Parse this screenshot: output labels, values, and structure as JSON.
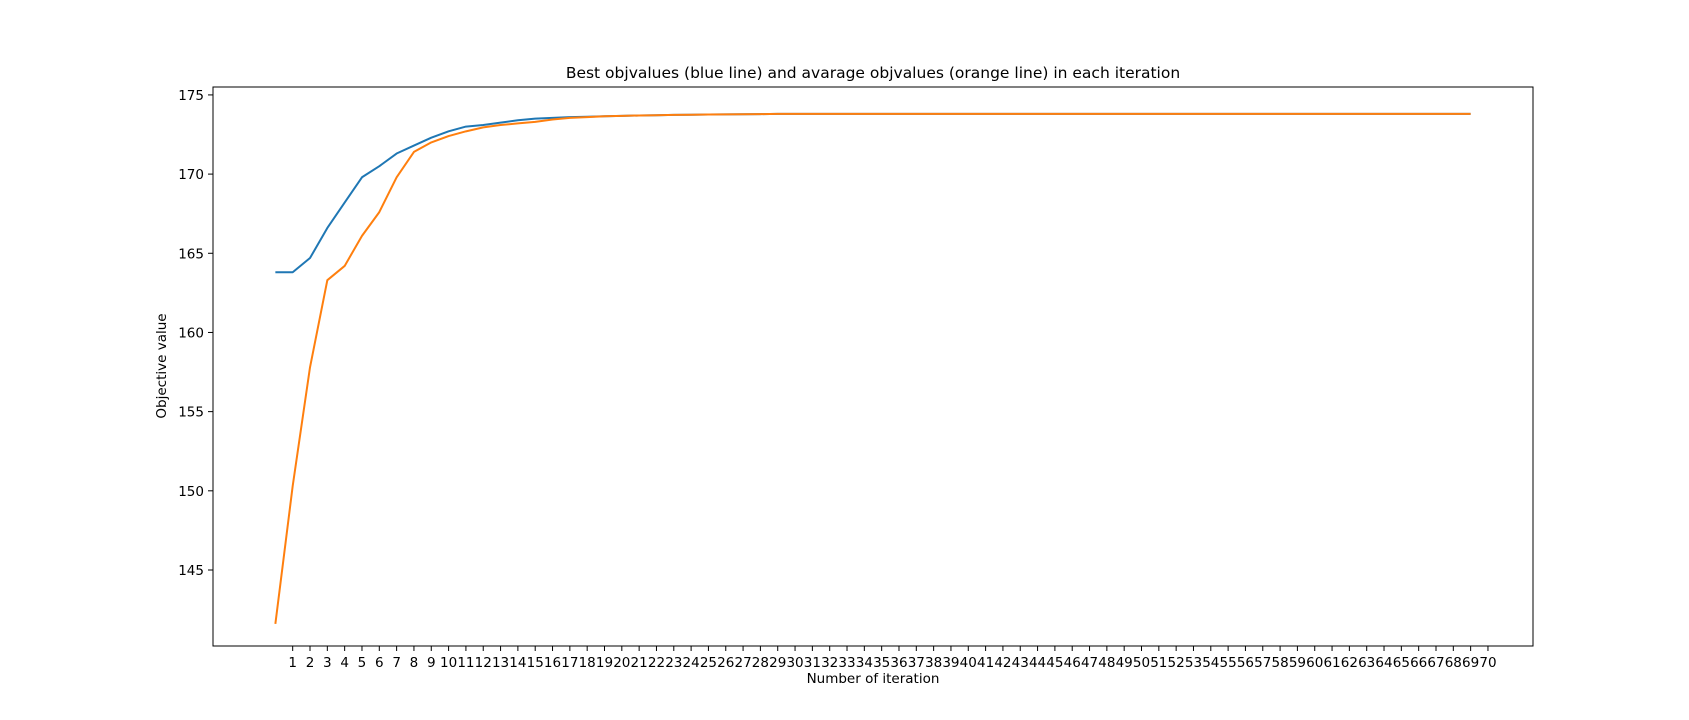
{
  "chart_data": {
    "type": "line",
    "title": "Best objvalues (blue line) and avarage objvalues (orange line) in each iteration",
    "xlabel": "Number of iteration",
    "ylabel": "Objective value",
    "x_start": 0,
    "x_tick_labels": [
      "1",
      "2",
      "3",
      "4",
      "5",
      "6",
      "7",
      "8",
      "9",
      "10",
      "11",
      "12",
      "13",
      "14",
      "15",
      "16",
      "17",
      "18",
      "19",
      "20",
      "21",
      "22",
      "23",
      "24",
      "25",
      "26",
      "27",
      "28",
      "29",
      "30",
      "31",
      "32",
      "33",
      "34",
      "35",
      "36",
      "37",
      "38",
      "39",
      "40",
      "41",
      "42",
      "43",
      "44",
      "45",
      "46",
      "47",
      "48",
      "49",
      "50",
      "51",
      "52",
      "53",
      "54",
      "55",
      "56",
      "57",
      "58",
      "59",
      "60",
      "61",
      "62",
      "63",
      "64",
      "65",
      "66",
      "67",
      "68",
      "69",
      "70"
    ],
    "y_ticks": [
      145,
      150,
      155,
      160,
      165,
      170,
      175
    ],
    "xlim": [
      -3.6,
      72.6
    ],
    "ylim": [
      140.2,
      175.5
    ],
    "grid": false,
    "legend": "none",
    "series": [
      {
        "color": "#1f77b4",
        "values": [
          163.8,
          163.8,
          164.7,
          166.6,
          168.2,
          169.8,
          170.5,
          171.3,
          171.8,
          172.3,
          172.7,
          173.0,
          173.1,
          173.25,
          173.4,
          173.5,
          173.55,
          173.6,
          173.62,
          173.65,
          173.68,
          173.7,
          173.72,
          173.74,
          173.75,
          173.76,
          173.77,
          173.78,
          173.79,
          173.8,
          173.8,
          173.8,
          173.8,
          173.8,
          173.8,
          173.8,
          173.8,
          173.8,
          173.8,
          173.8,
          173.8,
          173.8,
          173.8,
          173.8,
          173.8,
          173.8,
          173.8,
          173.8,
          173.8,
          173.8,
          173.8,
          173.8,
          173.8,
          173.8,
          173.8,
          173.8,
          173.8,
          173.8,
          173.8,
          173.8,
          173.8,
          173.8,
          173.8,
          173.8,
          173.8,
          173.8,
          173.8,
          173.8,
          173.8,
          173.8
        ]
      },
      {
        "color": "#ff7f0e",
        "values": [
          141.6,
          150.3,
          157.8,
          163.3,
          164.2,
          166.1,
          167.6,
          169.8,
          171.4,
          172.0,
          172.4,
          172.7,
          172.95,
          173.1,
          173.2,
          173.3,
          173.45,
          173.55,
          173.6,
          173.65,
          173.68,
          173.7,
          173.72,
          173.74,
          173.75,
          173.76,
          173.77,
          173.78,
          173.79,
          173.8,
          173.8,
          173.8,
          173.8,
          173.8,
          173.8,
          173.8,
          173.8,
          173.8,
          173.8,
          173.8,
          173.8,
          173.8,
          173.8,
          173.8,
          173.8,
          173.8,
          173.8,
          173.8,
          173.8,
          173.8,
          173.8,
          173.8,
          173.8,
          173.8,
          173.8,
          173.8,
          173.8,
          173.8,
          173.8,
          173.8,
          173.8,
          173.8,
          173.8,
          173.8,
          173.8,
          173.8,
          173.8,
          173.8,
          173.8,
          173.8
        ]
      }
    ]
  }
}
